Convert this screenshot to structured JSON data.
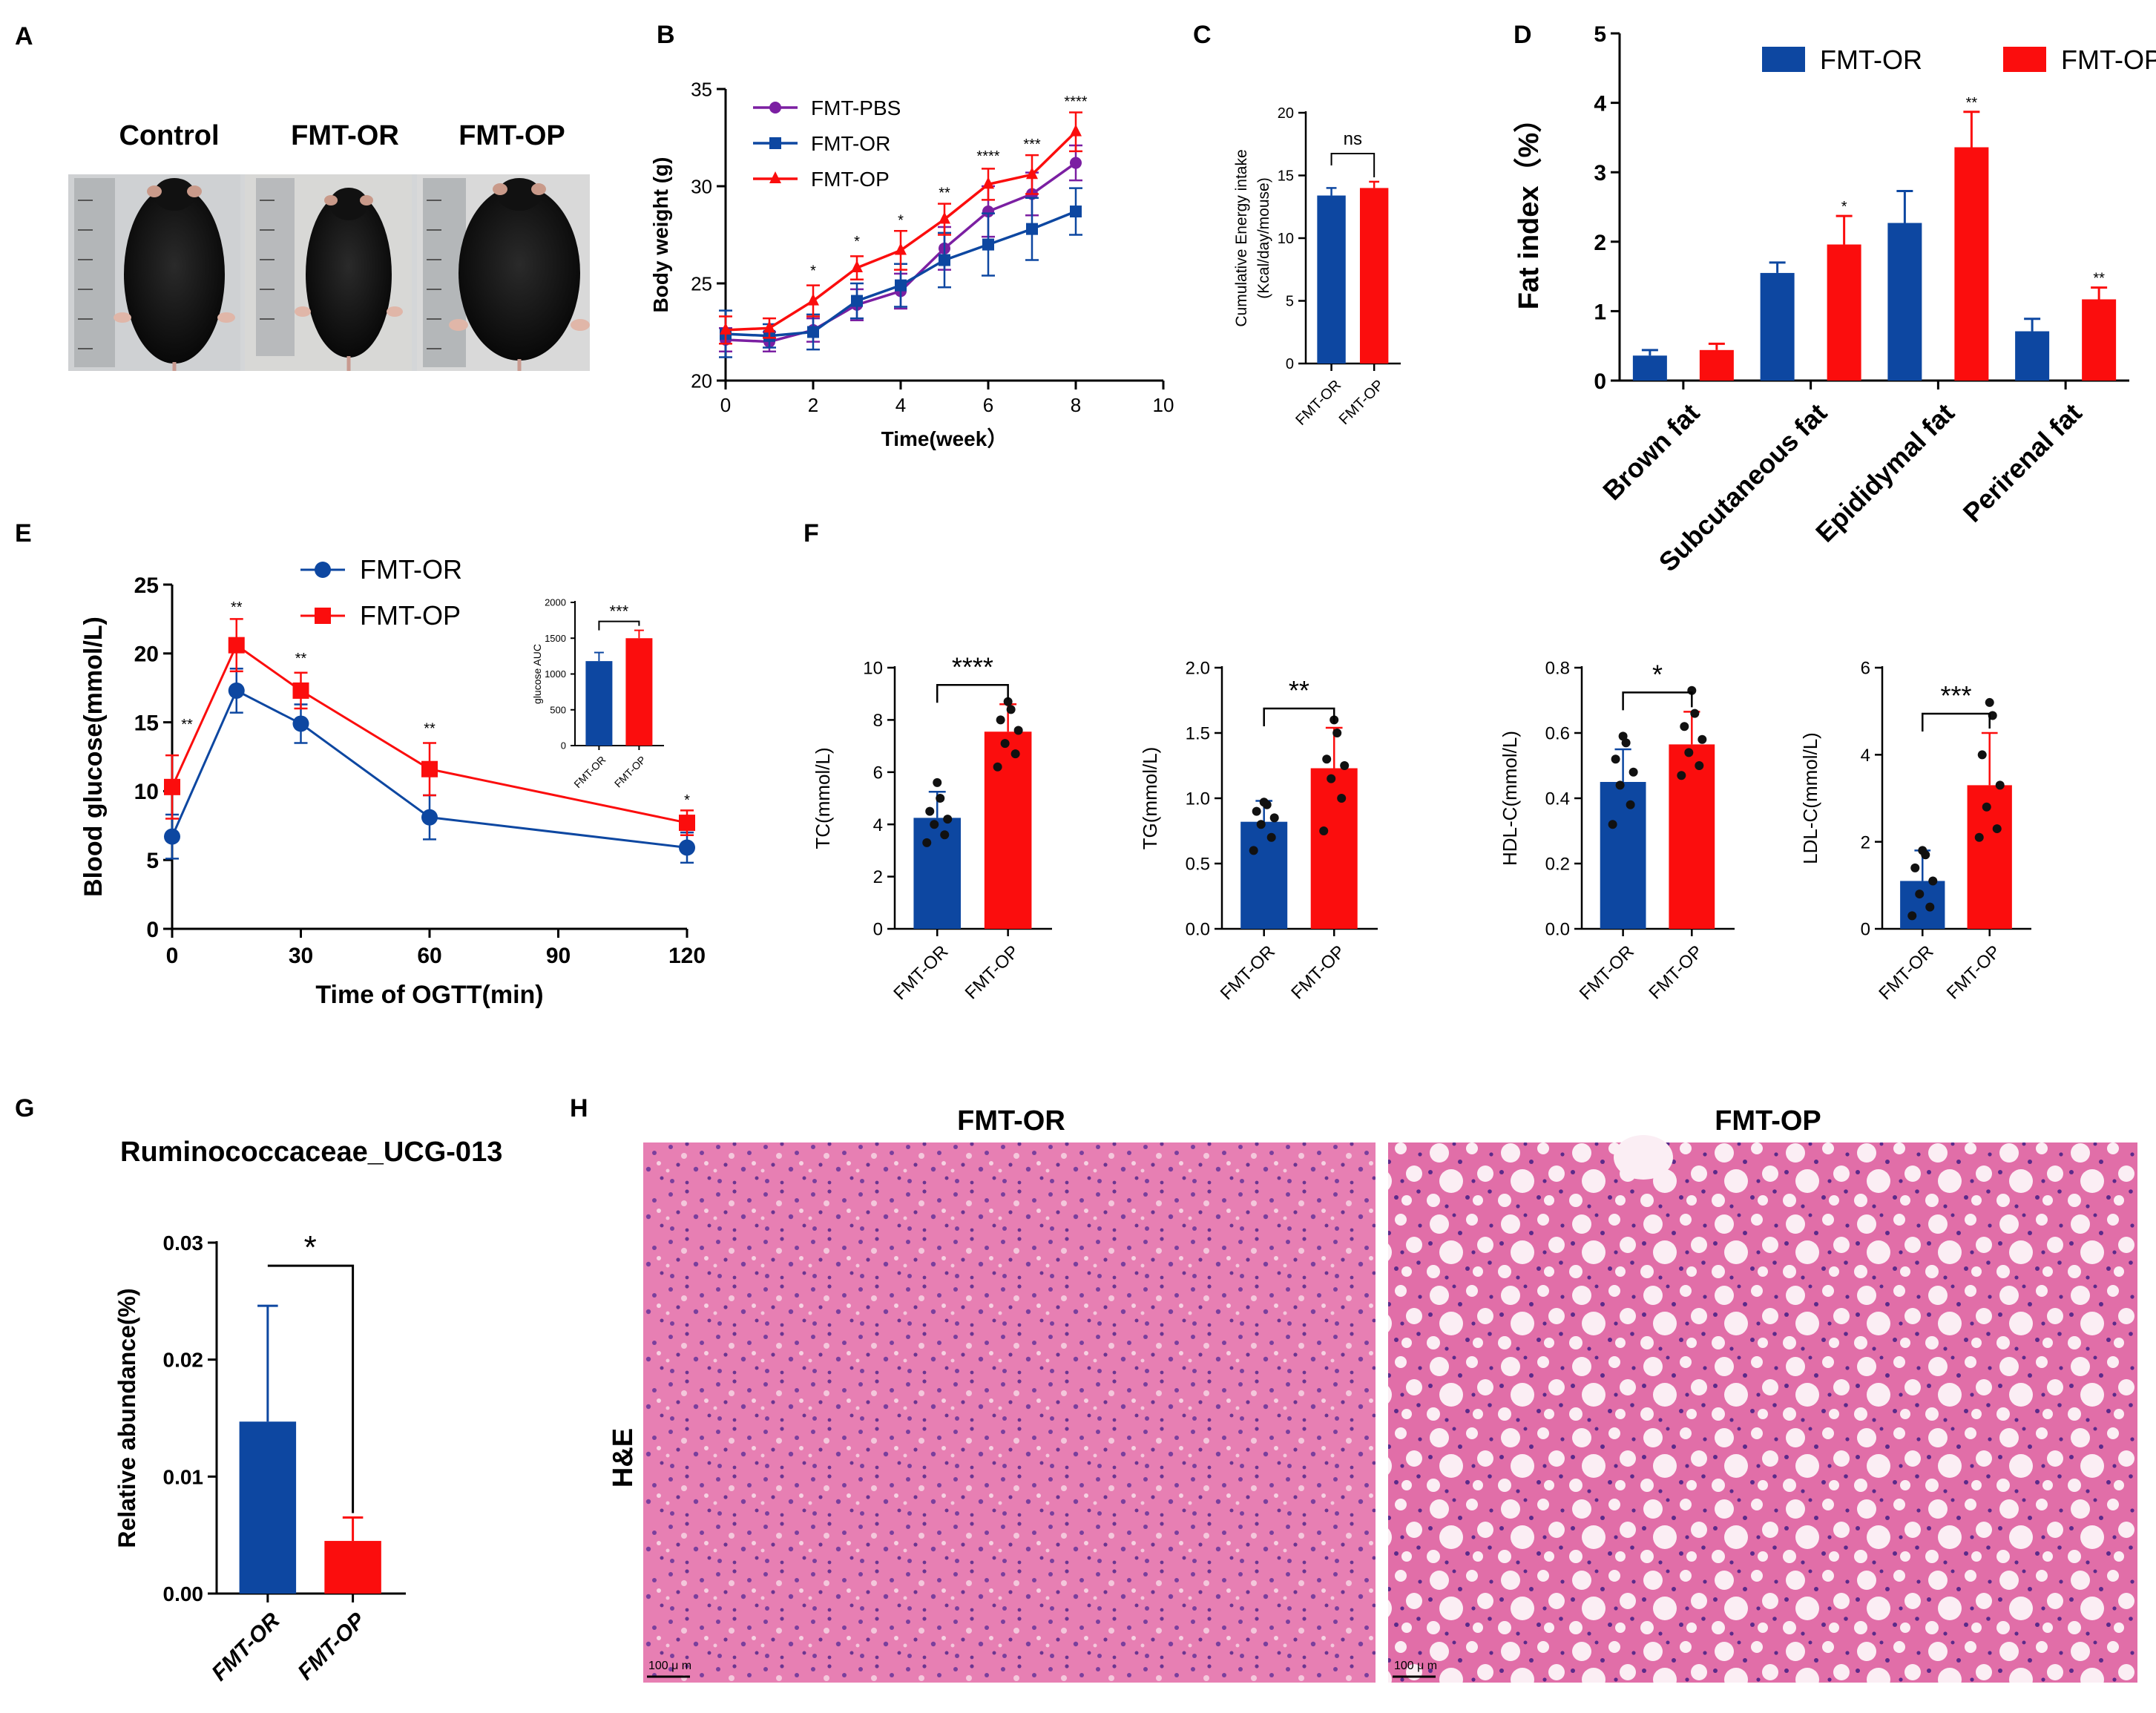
{
  "colors": {
    "or": "#0d47a1",
    "op": "#fb0d0d",
    "pbs": "#7b1fa2",
    "axis": "#000000"
  },
  "photo_icon": "mouse-photo-icon",
  "histology_icon": "liver-histology-icon",
  "panelA": {
    "letter": "A",
    "labels": [
      "Control",
      "FMT-OR",
      "FMT-OP"
    ]
  },
  "panelH": {
    "letter": "H",
    "left_title": "FMT-OR",
    "right_title": "FMT-OP",
    "row_label": "H&E",
    "scale_bar": "100 μ m"
  },
  "chart_data": [
    {
      "id": "B",
      "letter": "B",
      "type": "line",
      "xlabel": "Time(week）",
      "ylabel": "Body weight (g)",
      "xlim": [
        0,
        10
      ],
      "ylim": [
        20,
        35
      ],
      "xticks": [
        0,
        2,
        4,
        6,
        8,
        10
      ],
      "yticks": [
        20,
        25,
        30,
        35
      ],
      "x": [
        0,
        1,
        2,
        3,
        4,
        5,
        6,
        7,
        8
      ],
      "series": [
        {
          "name": "FMT-PBS",
          "key": "pbs",
          "marker": "circle",
          "values": [
            22.1,
            22.0,
            22.6,
            23.9,
            24.6,
            26.8,
            28.7,
            29.6,
            31.2
          ],
          "err": [
            0.6,
            0.5,
            0.6,
            0.8,
            0.9,
            1.1,
            1.3,
            1.1,
            0.9
          ]
        },
        {
          "name": "FMT-OR",
          "key": "or",
          "marker": "square",
          "values": [
            22.4,
            22.3,
            22.5,
            24.1,
            24.9,
            26.2,
            27.0,
            27.8,
            28.7
          ],
          "err": [
            1.2,
            0.6,
            0.9,
            0.9,
            1.1,
            1.4,
            1.6,
            1.6,
            1.2
          ]
        },
        {
          "name": "FMT-OP",
          "key": "op",
          "marker": "triangle",
          "values": [
            22.6,
            22.7,
            24.1,
            25.8,
            26.7,
            28.3,
            30.1,
            30.6,
            32.8
          ],
          "err": [
            0.7,
            0.5,
            0.8,
            0.6,
            1.0,
            0.8,
            0.8,
            1.0,
            1.0
          ]
        }
      ],
      "annotations": [
        {
          "x": 2,
          "y": 25.4,
          "text": "*"
        },
        {
          "x": 3,
          "y": 26.9,
          "text": "*"
        },
        {
          "x": 4,
          "y": 28.0,
          "text": "*"
        },
        {
          "x": 5,
          "y": 29.4,
          "text": "**"
        },
        {
          "x": 6,
          "y": 31.3,
          "text": "****"
        },
        {
          "x": 7,
          "y": 31.9,
          "text": "***"
        },
        {
          "x": 8,
          "y": 34.1,
          "text": "****"
        }
      ]
    },
    {
      "id": "C",
      "letter": "C",
      "type": "bar",
      "ylabel": [
        "Cumulative Energy intake",
        "(Kcal/day/mouse)"
      ],
      "categories": [
        "FMT-OR",
        "FMT-OP"
      ],
      "ylim": [
        0,
        20
      ],
      "yticks": [
        0,
        5,
        10,
        15,
        20
      ],
      "values": [
        13.4,
        14.0
      ],
      "err": [
        0.6,
        0.5
      ],
      "keys": [
        "or",
        "op"
      ],
      "sig": "ns"
    },
    {
      "id": "D",
      "letter": "D",
      "type": "bar",
      "ylabel": "Fat index（%）",
      "categories": [
        "Brown fat",
        "Subcutaneous fat",
        "Epididymal fat",
        "Perirenal fat"
      ],
      "ylim": [
        0,
        5
      ],
      "yticks": [
        0,
        1,
        2,
        3,
        4,
        5
      ],
      "series": [
        {
          "name": "FMT-OR",
          "key": "or",
          "values": [
            0.36,
            1.55,
            2.27,
            0.71
          ],
          "err": [
            0.08,
            0.15,
            0.46,
            0.18
          ]
        },
        {
          "name": "FMT-OP",
          "key": "op",
          "values": [
            0.44,
            1.96,
            3.36,
            1.17
          ],
          "err": [
            0.09,
            0.41,
            0.51,
            0.17
          ]
        }
      ],
      "sig": [
        "",
        "*",
        "**",
        "**"
      ]
    },
    {
      "id": "E",
      "letter": "E",
      "type": "line",
      "xlabel": "Time of OGTT(min)",
      "ylabel": "Blood glucose(mmol/L)",
      "xlim": [
        0,
        120
      ],
      "ylim": [
        0,
        25
      ],
      "xticks": [
        0,
        30,
        60,
        90,
        120
      ],
      "yticks": [
        0,
        5,
        10,
        15,
        20,
        25
      ],
      "x": [
        0,
        15,
        30,
        60,
        120
      ],
      "series": [
        {
          "name": "FMT-OR",
          "key": "or",
          "marker": "circle",
          "values": [
            6.7,
            17.3,
            14.9,
            8.1,
            5.9
          ],
          "err": [
            1.6,
            1.6,
            1.4,
            1.6,
            1.1
          ]
        },
        {
          "name": "FMT-OP",
          "key": "op",
          "marker": "square",
          "values": [
            10.3,
            20.6,
            17.3,
            11.6,
            7.7
          ],
          "err": [
            2.3,
            1.9,
            1.3,
            1.9,
            0.9
          ]
        }
      ],
      "annotations": [
        {
          "x": 0,
          "y": 14.5,
          "text": "**",
          "dx": 20
        },
        {
          "x": 15,
          "y": 23.0,
          "text": "**"
        },
        {
          "x": 30,
          "y": 19.3,
          "text": "**"
        },
        {
          "x": 60,
          "y": 14.2,
          "text": "**"
        },
        {
          "x": 120,
          "y": 9.0,
          "text": "*"
        }
      ],
      "inset": {
        "type": "bar",
        "ylabel": "glucose AUC",
        "categories": [
          "FMT-OR",
          "FMT-OP"
        ],
        "ylim": [
          0,
          2000
        ],
        "yticks": [
          0,
          500,
          1000,
          1500,
          2000
        ],
        "values": [
          1180,
          1500
        ],
        "err": [
          120,
          110
        ],
        "keys": [
          "or",
          "op"
        ],
        "sig": "***"
      }
    },
    {
      "id": "F1",
      "letter": "F",
      "type": "bar",
      "ylabel": "TC(mmol/L)",
      "categories": [
        "FMT-OR",
        "FMT-OP"
      ],
      "ylim": [
        0,
        10
      ],
      "yticks": [
        0,
        2,
        4,
        6,
        8,
        10
      ],
      "yfmt": 0,
      "values": [
        4.25,
        7.55
      ],
      "err": [
        1.0,
        1.05
      ],
      "keys": [
        "or",
        "op"
      ],
      "sig": "****",
      "points": [
        [
          3.3,
          3.6,
          4.0,
          4.2,
          4.5,
          5.0,
          5.6
        ],
        [
          6.2,
          6.7,
          7.1,
          7.6,
          8.0,
          8.4,
          8.7
        ]
      ]
    },
    {
      "id": "F2",
      "type": "bar",
      "ylabel": "TG(mmol/L)",
      "categories": [
        "FMT-OR",
        "FMT-OP"
      ],
      "ylim": [
        0,
        2
      ],
      "yticks": [
        0,
        0.5,
        1,
        1.5,
        2
      ],
      "yfmt": 1,
      "values": [
        0.82,
        1.23
      ],
      "err": [
        0.16,
        0.31
      ],
      "keys": [
        "or",
        "op"
      ],
      "sig": "**",
      "points": [
        [
          0.6,
          0.7,
          0.8,
          0.85,
          0.9,
          0.95,
          0.97
        ],
        [
          0.75,
          1.0,
          1.15,
          1.25,
          1.3,
          1.5,
          1.6
        ]
      ]
    },
    {
      "id": "F3",
      "type": "bar",
      "ylabel": "HDL-C(mmol/L)",
      "categories": [
        "FMT-OR",
        "FMT-OP"
      ],
      "ylim": [
        0,
        0.8
      ],
      "yticks": [
        0,
        0.2,
        0.4,
        0.6,
        0.8
      ],
      "yfmt": 1,
      "values": [
        0.45,
        0.565
      ],
      "err": [
        0.1,
        0.1
      ],
      "keys": [
        "or",
        "op"
      ],
      "sig": "*",
      "points": [
        [
          0.32,
          0.38,
          0.44,
          0.48,
          0.52,
          0.57,
          0.59
        ],
        [
          0.47,
          0.5,
          0.54,
          0.58,
          0.62,
          0.66,
          0.73
        ]
      ]
    },
    {
      "id": "F4",
      "type": "bar",
      "ylabel": "LDL-C(mmol/L)",
      "categories": [
        "FMT-OR",
        "FMT-OP"
      ],
      "ylim": [
        0,
        6
      ],
      "yticks": [
        0,
        2,
        4,
        6
      ],
      "yfmt": 0,
      "values": [
        1.1,
        3.3
      ],
      "err": [
        0.7,
        1.2
      ],
      "keys": [
        "or",
        "op"
      ],
      "sig": "***",
      "points": [
        [
          0.3,
          0.5,
          0.8,
          1.1,
          1.4,
          1.7,
          1.8
        ],
        [
          2.1,
          2.3,
          2.8,
          3.3,
          4.0,
          4.9,
          5.2
        ]
      ]
    },
    {
      "id": "G",
      "letter": "G",
      "type": "bar",
      "title": "Ruminococcaceae_UCG-013",
      "ylabel": "Relative abundance(%)",
      "categories": [
        "FMT-OR",
        "FMT-OP"
      ],
      "ylim": [
        0,
        0.03
      ],
      "yticks": [
        0,
        0.01,
        0.02,
        0.03
      ],
      "yfmt": 2,
      "values": [
        0.0147,
        0.0045
      ],
      "err": [
        0.0099,
        0.002
      ],
      "keys": [
        "or",
        "op"
      ],
      "sig": "*"
    }
  ]
}
